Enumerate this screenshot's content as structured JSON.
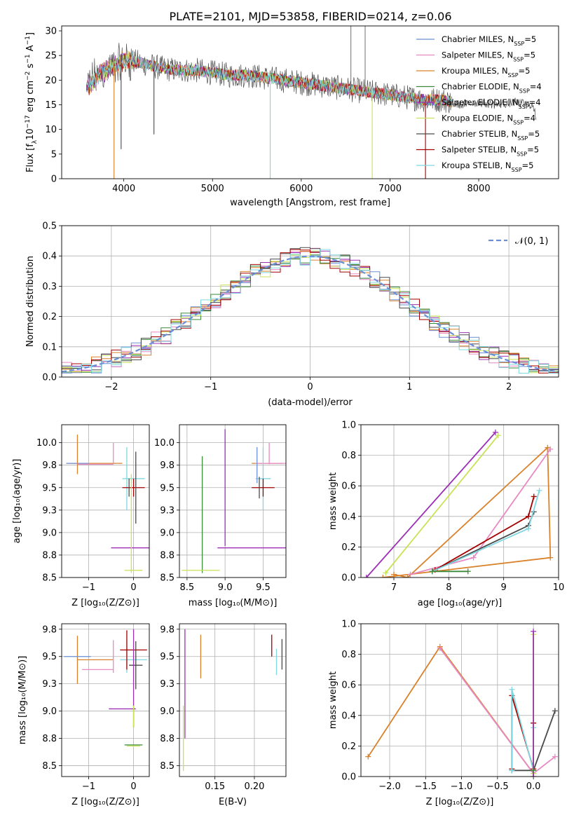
{
  "colors": {
    "chabrier_miles": "#6b8fd6",
    "salpeter_miles": "#e78ac3",
    "kroupa_miles": "#d9822b",
    "chabrier_elodie": "#3a8a3a",
    "salpeter_elodie": "#9b30b5",
    "kroupa_elodie": "#c8e356",
    "chabrier_stelib": "#4a4a4a",
    "salpeter_stelib": "#a40000",
    "kroupa_stelib": "#7fd8e0",
    "normal_curve": "#6b8fd6",
    "grid": "#b0b0b0"
  },
  "chart_data": [
    {
      "id": "spectrum",
      "type": "line",
      "title": "PLATE=2101, MJD=53858, FIBERID=0214, z=0.06",
      "xlabel": "wavelength [Angstrom, rest frame]",
      "ylabel": "Flux [f_λ 10^-17 erg cm^-2 s^-1 A^-1]",
      "xlim": [
        3300,
        8900
      ],
      "ylim": [
        0,
        31
      ],
      "xticks": [
        4000,
        5000,
        6000,
        7000,
        8000
      ],
      "yticks": [
        0,
        5,
        10,
        15,
        20,
        25,
        30
      ],
      "grid": false,
      "legend_position": "top-right",
      "series": [
        {
          "name": "Chabrier MILES, N_SSP=5",
          "color_key": "chabrier_miles"
        },
        {
          "name": "Salpeter MILES, N_SSP=5",
          "color_key": "salpeter_miles"
        },
        {
          "name": "Kroupa MILES, N_SSP=5",
          "color_key": "kroupa_miles"
        },
        {
          "name": "Chabrier ELODIE, N_SSP=4",
          "color_key": "chabrier_elodie"
        },
        {
          "name": "Salpeter ELODIE, N_SSP=4",
          "color_key": "salpeter_elodie"
        },
        {
          "name": "Kroupa ELODIE, N_SSP=4",
          "color_key": "kroupa_elodie"
        },
        {
          "name": "Chabrier STELIB, N_SSP=5",
          "color_key": "chabrier_stelib"
        },
        {
          "name": "Salpeter STELIB, N_SSP=5",
          "color_key": "salpeter_stelib"
        },
        {
          "name": "Kroupa STELIB, N_SSP=5",
          "color_key": "kroupa_stelib"
        }
      ],
      "continuum": {
        "x": [
          3580,
          3650,
          3750,
          3850,
          3950,
          4050,
          4200,
          4400,
          4600,
          4800,
          5000,
          5200,
          5400,
          5600,
          5800,
          6000,
          6200,
          6400,
          6600,
          6800,
          7000,
          7200,
          7400,
          7600,
          7700
        ],
        "y": [
          18.5,
          20.0,
          21.5,
          22.5,
          23.5,
          24.0,
          23.5,
          22.5,
          22.0,
          22.0,
          21.5,
          21.0,
          21.0,
          20.5,
          20.0,
          19.5,
          19.0,
          18.5,
          18.0,
          17.5,
          17.0,
          16.5,
          16.0,
          16.0,
          15.5
        ]
      },
      "observed_tail": {
        "x": [
          7600,
          7800,
          8000,
          8200,
          8400,
          8600,
          8650
        ],
        "y": [
          15.5,
          15.0,
          15.5,
          15.0,
          15.5,
          15.0,
          12.5
        ]
      },
      "absorption_lines": [
        {
          "x": 3890,
          "y": 0,
          "color_key": "kroupa_miles"
        },
        {
          "x": 3970,
          "y": 6.0,
          "color_key": "chabrier_stelib"
        },
        {
          "x": 4340,
          "y": 9.0,
          "color_key": "chabrier_stelib"
        },
        {
          "x": 5650,
          "y": 0,
          "color_key": "kroupa_stelib"
        },
        {
          "x": 6800,
          "y": 0,
          "color_key": "kroupa_elodie"
        },
        {
          "x": 7400,
          "y": 0,
          "color_key": "salpeter_stelib"
        }
      ],
      "emission_spikes": [
        {
          "x": 6560,
          "y": 31
        },
        {
          "x": 6720,
          "y": 31
        }
      ]
    },
    {
      "id": "residuals",
      "type": "line",
      "xlabel": "(data-model)/error",
      "ylabel": "Normed distribution",
      "xlim": [
        -2.5,
        2.5
      ],
      "ylim": [
        0,
        0.5
      ],
      "xticks": [
        -2,
        -1,
        0,
        1,
        2
      ],
      "yticks": [
        0.0,
        0.1,
        0.2,
        0.3,
        0.4,
        0.5
      ],
      "grid": true,
      "legend_position": "top-right",
      "normal_label": "𝒩(0, 1)",
      "hist_bins": 50
    },
    {
      "id": "age_vs_z",
      "type": "scatter",
      "xlabel": "Z [log₁₀(Z/Z⊙)]",
      "ylabel": "age  [log₁₀(age/yr)]",
      "xlim": [
        -1.6,
        0.35
      ],
      "ylim": [
        8.5,
        10.2
      ],
      "xticks": [
        -1,
        0
      ],
      "yticks": [
        8.5,
        8.75,
        9.0,
        9.25,
        9.5,
        9.75,
        10.0
      ],
      "grid": true,
      "points": [
        {
          "x": -0.85,
          "y": 9.77,
          "xerr": 0.6,
          "yerr": 0.0,
          "color_key": "kroupa_miles"
        },
        {
          "x": -1.25,
          "y": 9.77,
          "xerr": 0.25,
          "yerr": 0.0,
          "color_key": "chabrier_miles"
        },
        {
          "x": -1.25,
          "y": 9.87,
          "xerr": 0.0,
          "yerr": 0.22,
          "color_key": "kroupa_miles"
        },
        {
          "x": -0.45,
          "y": 9.88,
          "xerr": 0.0,
          "yerr": 0.12,
          "color_key": "salpeter_miles"
        },
        {
          "x": -0.85,
          "y": 9.76,
          "xerr": 0.4,
          "yerr": 0.0,
          "color_key": "salpeter_miles"
        },
        {
          "x": -0.15,
          "y": 9.6,
          "xerr": 0.0,
          "yerr": 0.35,
          "color_key": "kroupa_stelib"
        },
        {
          "x": 0.0,
          "y": 9.6,
          "xerr": 0.25,
          "yerr": 0.0,
          "color_key": "kroupa_stelib"
        },
        {
          "x": 0.0,
          "y": 9.5,
          "xerr": 0.25,
          "yerr": 0.1,
          "color_key": "salpeter_stelib"
        },
        {
          "x": 0.05,
          "y": 9.5,
          "xerr": 0.0,
          "yerr": 0.4,
          "color_key": "chabrier_stelib"
        },
        {
          "x": -0.1,
          "y": 9.5,
          "xerr": 0.0,
          "yerr": 0.1,
          "color_key": "chabrier_stelib"
        },
        {
          "x": 0.0,
          "y": 8.83,
          "xerr": 0.5,
          "yerr": 0.0,
          "color_key": "salpeter_elodie"
        },
        {
          "x": 0.0,
          "y": 8.58,
          "xerr": 0.2,
          "yerr": 0.0,
          "color_key": "kroupa_elodie"
        },
        {
          "x": -0.05,
          "y": 9.1,
          "xerr": 0.0,
          "yerr": 0.55,
          "color_key": "kroupa_elodie"
        }
      ]
    },
    {
      "id": "age_vs_mass",
      "type": "scatter",
      "xlabel": "mass [log₁₀(M/M⊙)]",
      "ylabel": "",
      "xlim": [
        8.4,
        9.8
      ],
      "ylim": [
        8.5,
        10.2
      ],
      "xticks": [
        8.5,
        9.0,
        9.5
      ],
      "yticks": [
        8.5,
        8.75,
        9.0,
        9.25,
        9.5,
        9.75,
        10.0
      ],
      "grid": true,
      "points": [
        {
          "x": 8.7,
          "y": 9.2,
          "xerr": 0.0,
          "yerr": 0.65,
          "color_key": "chabrier_elodie"
        },
        {
          "x": 8.68,
          "y": 8.58,
          "xerr": 0.25,
          "yerr": 0.0,
          "color_key": "kroupa_elodie"
        },
        {
          "x": 9.0,
          "y": 9.5,
          "xerr": 0.0,
          "yerr": 0.65,
          "color_key": "salpeter_elodie"
        },
        {
          "x": 9.35,
          "y": 8.83,
          "xerr": 0.45,
          "yerr": 0.0,
          "color_key": "salpeter_elodie"
        },
        {
          "x": 9.55,
          "y": 9.77,
          "xerr": 0.2,
          "yerr": 0.0,
          "color_key": "kroupa_miles"
        },
        {
          "x": 9.6,
          "y": 9.77,
          "xerr": 0.2,
          "yerr": 0.0,
          "color_key": "salpeter_miles"
        },
        {
          "x": 9.58,
          "y": 9.88,
          "xerr": 0.0,
          "yerr": 0.12,
          "color_key": "salpeter_miles"
        },
        {
          "x": 9.5,
          "y": 9.6,
          "xerr": 0.1,
          "yerr": 0.35,
          "color_key": "kroupa_stelib"
        },
        {
          "x": 9.5,
          "y": 9.5,
          "xerr": 0.15,
          "yerr": 0.1,
          "color_key": "salpeter_stelib"
        },
        {
          "x": 9.45,
          "y": 9.5,
          "xerr": 0.0,
          "yerr": 0.12,
          "color_key": "chabrier_stelib"
        },
        {
          "x": 9.42,
          "y": 9.75,
          "xerr": 0.0,
          "yerr": 0.2,
          "color_key": "chabrier_miles"
        }
      ]
    },
    {
      "id": "weight_vs_age",
      "type": "line",
      "xlabel": "age  [log₁₀(age/yr)]",
      "ylabel": "mass weight",
      "xlim": [
        6.4,
        10.0
      ],
      "ylim": [
        0.0,
        1.0
      ],
      "xticks": [
        7,
        8,
        9,
        10
      ],
      "yticks": [
        0.0,
        0.2,
        0.4,
        0.6,
        0.8,
        1.0
      ],
      "grid": true,
      "series": [
        {
          "color_key": "kroupa_miles",
          "x": [
            7.0,
            7.25,
            9.8,
            9.85,
            6.8
          ],
          "y": [
            0.02,
            0.0,
            0.85,
            0.13,
            0.0
          ]
        },
        {
          "color_key": "salpeter_miles",
          "x": [
            7.3,
            8.45,
            9.85
          ],
          "y": [
            0.02,
            0.13,
            0.84
          ]
        },
        {
          "color_key": "kroupa_elodie",
          "x": [
            6.85,
            8.9
          ],
          "y": [
            0.03,
            0.93
          ]
        },
        {
          "color_key": "salpeter_elodie",
          "x": [
            6.5,
            8.85
          ],
          "y": [
            0.0,
            0.95
          ]
        },
        {
          "color_key": "chabrier_stelib",
          "x": [
            7.7,
            9.45,
            9.55
          ],
          "y": [
            0.04,
            0.34,
            0.43
          ]
        },
        {
          "color_key": "salpeter_stelib",
          "x": [
            7.75,
            9.45,
            9.55
          ],
          "y": [
            0.05,
            0.4,
            0.53
          ]
        },
        {
          "color_key": "kroupa_stelib",
          "x": [
            7.7,
            9.45,
            9.65
          ],
          "y": [
            0.04,
            0.32,
            0.57
          ]
        },
        {
          "color_key": "chabrier_elodie",
          "x": [
            7.7,
            8.35
          ],
          "y": [
            0.04,
            0.04
          ]
        }
      ]
    },
    {
      "id": "mass_vs_z",
      "type": "scatter",
      "xlabel": "Z [log₁₀(Z/Z⊙)]",
      "ylabel": "mass [log₁₀(M/M⊙)]",
      "xlim": [
        -1.6,
        0.35
      ],
      "ylim": [
        8.4,
        9.8
      ],
      "xticks": [
        -1,
        0
      ],
      "yticks": [
        8.5,
        8.75,
        9.0,
        9.25,
        9.5,
        9.75
      ],
      "grid": true,
      "points": [
        {
          "x": -1.25,
          "y": 9.47,
          "xerr": 0.0,
          "yerr": 0.22,
          "color_key": "kroupa_miles"
        },
        {
          "x": -0.85,
          "y": 9.47,
          "xerr": 0.4,
          "yerr": 0.0,
          "color_key": "kroupa_miles"
        },
        {
          "x": -1.25,
          "y": 9.5,
          "xerr": 0.3,
          "yerr": 0.0,
          "color_key": "chabrier_miles"
        },
        {
          "x": -0.8,
          "y": 9.38,
          "xerr": 0.35,
          "yerr": 0.0,
          "color_key": "salpeter_miles"
        },
        {
          "x": -0.45,
          "y": 9.5,
          "xerr": 0.0,
          "yerr": 0.15,
          "color_key": "salpeter_miles"
        },
        {
          "x": -0.15,
          "y": 9.5,
          "xerr": 0.0,
          "yerr": 0.15,
          "color_key": "kroupa_stelib"
        },
        {
          "x": 0.0,
          "y": 9.47,
          "xerr": 0.3,
          "yerr": 0.0,
          "color_key": "kroupa_stelib"
        },
        {
          "x": 0.0,
          "y": 9.56,
          "xerr": 0.3,
          "yerr": 0.0,
          "color_key": "salpeter_stelib"
        },
        {
          "x": -0.15,
          "y": 9.56,
          "xerr": 0.0,
          "yerr": 0.18,
          "color_key": "salpeter_stelib"
        },
        {
          "x": 0.05,
          "y": 9.42,
          "xerr": 0.15,
          "yerr": 0.22,
          "color_key": "chabrier_stelib"
        },
        {
          "x": -0.25,
          "y": 9.02,
          "xerr": 0.3,
          "yerr": 0.0,
          "color_key": "salpeter_elodie"
        },
        {
          "x": 0.0,
          "y": 9.3,
          "xerr": 0.0,
          "yerr": 0.45,
          "color_key": "salpeter_elodie"
        },
        {
          "x": 0.0,
          "y": 8.69,
          "xerr": 0.2,
          "yerr": 0.0,
          "color_key": "chabrier_elodie"
        },
        {
          "x": 0.0,
          "y": 8.68,
          "xerr": 0.15,
          "yerr": 0.0,
          "color_key": "kroupa_elodie"
        },
        {
          "x": 0.0,
          "y": 8.95,
          "xerr": 0.0,
          "yerr": 0.1,
          "color_key": "kroupa_elodie"
        }
      ]
    },
    {
      "id": "mass_vs_ebv",
      "type": "scatter",
      "xlabel": "E(B-V)",
      "ylabel": "",
      "xlim": [
        0.105,
        0.24
      ],
      "ylim": [
        8.4,
        9.8
      ],
      "xticks": [
        0.15,
        0.2
      ],
      "xtick_labels": [
        "0.15",
        "0.20"
      ],
      "yticks": [
        8.5,
        8.75,
        9.0,
        9.25,
        9.5,
        9.75
      ],
      "grid": true,
      "points": [
        {
          "x": 0.112,
          "y": 9.25,
          "xerr": 0.0,
          "yerr": 0.5,
          "color_key": "salpeter_elodie"
        },
        {
          "x": 0.11,
          "y": 8.75,
          "xerr": 0.0,
          "yerr": 0.3,
          "color_key": "kroupa_elodie"
        },
        {
          "x": 0.132,
          "y": 9.5,
          "xerr": 0.0,
          "yerr": 0.2,
          "color_key": "kroupa_miles"
        },
        {
          "x": 0.222,
          "y": 9.6,
          "xerr": 0.0,
          "yerr": 0.1,
          "color_key": "salpeter_stelib"
        },
        {
          "x": 0.228,
          "y": 9.45,
          "xerr": 0.0,
          "yerr": 0.12,
          "color_key": "kroupa_stelib"
        },
        {
          "x": 0.235,
          "y": 9.52,
          "xerr": 0.0,
          "yerr": 0.14,
          "color_key": "chabrier_stelib"
        }
      ]
    },
    {
      "id": "weight_vs_z",
      "type": "line",
      "xlabel": "Z [log₁₀(Z/Z⊙)]",
      "ylabel": "mass weight",
      "xlim": [
        -2.4,
        0.35
      ],
      "ylim": [
        0.0,
        1.0
      ],
      "xticks": [
        -2.0,
        -1.5,
        -1.0,
        -0.5,
        0.0
      ],
      "yticks": [
        0.0,
        0.2,
        0.4,
        0.6,
        0.8,
        1.0
      ],
      "grid": true,
      "series": [
        {
          "color_key": "kroupa_miles",
          "x": [
            -2.3,
            -1.3,
            0.0,
            0.0
          ],
          "y": [
            0.13,
            0.85,
            0.02,
            0.0
          ]
        },
        {
          "color_key": "salpeter_miles",
          "x": [
            -1.3,
            0.0,
            0.3
          ],
          "y": [
            0.84,
            0.02,
            0.13
          ]
        },
        {
          "color_key": "chabrier_stelib",
          "x": [
            -0.3,
            0.0,
            0.3
          ],
          "y": [
            0.04,
            0.04,
            0.43
          ]
        },
        {
          "color_key": "salpeter_stelib",
          "x": [
            -0.3,
            -0.3,
            0.0,
            0.0
          ],
          "y": [
            0.05,
            0.53,
            0.05,
            0.35
          ]
        },
        {
          "color_key": "kroupa_stelib",
          "x": [
            -0.3,
            -0.3,
            0.0,
            0.0
          ],
          "y": [
            0.04,
            0.57,
            0.04,
            0.32
          ]
        },
        {
          "color_key": "kroupa_elodie",
          "x": [
            0.0,
            0.0
          ],
          "y": [
            0.02,
            0.93
          ]
        },
        {
          "color_key": "salpeter_elodie",
          "x": [
            0.0,
            0.0
          ],
          "y": [
            0.0,
            0.95
          ]
        },
        {
          "color_key": "chabrier_elodie",
          "x": [
            0.0,
            0.0
          ],
          "y": [
            0.04,
            0.04
          ]
        }
      ]
    }
  ]
}
